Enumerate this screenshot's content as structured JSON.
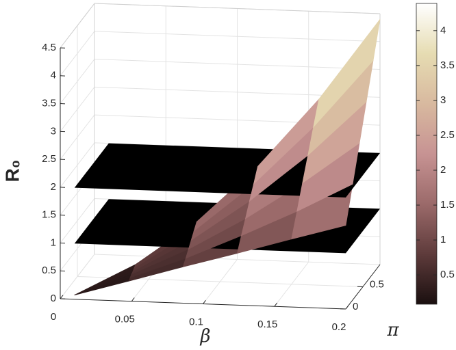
{
  "chart_data": {
    "type": "surface3d",
    "xlabel": "β",
    "ylabel": "π",
    "zlabel": "R₀",
    "xlim": [
      0,
      0.2
    ],
    "xticks": [
      0,
      0.05,
      0.1,
      0.15,
      0.2
    ],
    "ylim": [
      0,
      1
    ],
    "yticks": [
      0,
      0.5
    ],
    "zlim": [
      0,
      4.5
    ],
    "zticks": [
      0,
      0.5,
      1,
      1.5,
      2,
      2.5,
      3,
      3.5,
      4,
      4.5
    ],
    "grid": true,
    "planes": [
      1,
      2
    ],
    "plane_color": "#000000",
    "surface": {
      "x": [
        0.01,
        0.048,
        0.086,
        0.124,
        0.162,
        0.2
      ],
      "y": [
        [
          0,
          0,
          0,
          0,
          0,
          0
        ],
        [
          0,
          0.04,
          0.08,
          0.12,
          0.16,
          0.2
        ],
        [
          0,
          0.08,
          0.16,
          0.24,
          0.32,
          0.4
        ],
        [
          0,
          0.12,
          0.24,
          0.36,
          0.48,
          0.6
        ],
        [
          0,
          0.16,
          0.32,
          0.48,
          0.64,
          0.8
        ],
        [
          0,
          0.2,
          0.4,
          0.6,
          0.8,
          1
        ]
      ],
      "z": [
        [
          0.075,
          0.075,
          0.075,
          0.075,
          0.075,
          0.075
        ],
        [
          0.36,
          0.39,
          0.42,
          0.44,
          0.47,
          0.5
        ],
        [
          0.65,
          0.74,
          0.84,
          0.94,
          1.04,
          1.14
        ],
        [
          0.93,
          1.15,
          1.36,
          1.58,
          1.79,
          2.01
        ],
        [
          1.22,
          1.59,
          1.97,
          2.34,
          2.72,
          3.09
        ],
        [
          1.5,
          2.08,
          2.66,
          3.24,
          3.82,
          4.4
        ]
      ]
    },
    "colormap": [
      "#1a0f0f",
      "#5e3b3b",
      "#9b6a6a",
      "#c79393",
      "#d8b99f",
      "#e6dcb2",
      "#ffffff"
    ],
    "colorbar": {
      "lim": [
        0.08,
        4.39
      ],
      "ticks": [
        0.5,
        1,
        1.5,
        2,
        2.5,
        3,
        3.5,
        4
      ]
    }
  }
}
